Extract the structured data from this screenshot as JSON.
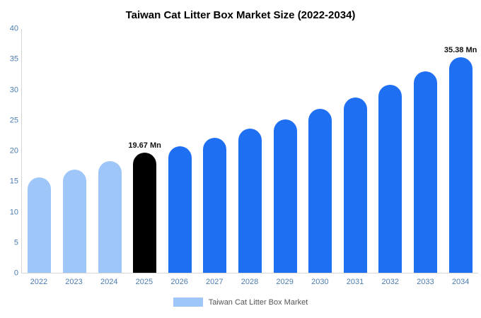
{
  "chart_data": {
    "type": "bar",
    "title": "Taiwan Cat Litter Box Market Size (2022-2034)",
    "categories": [
      "2022",
      "2023",
      "2024",
      "2025",
      "2026",
      "2027",
      "2028",
      "2029",
      "2030",
      "2031",
      "2032",
      "2033",
      "2034"
    ],
    "values": [
      15.7,
      16.9,
      18.3,
      19.67,
      20.8,
      22.1,
      23.6,
      25.2,
      26.9,
      28.8,
      30.8,
      33.0,
      35.38
    ],
    "point_labels": [
      "",
      "",
      "",
      "19.67 Mn",
      "",
      "",
      "",
      "",
      "",
      "",
      "",
      "",
      "35.38 Mn"
    ],
    "bar_colors": [
      "#9ec6f8",
      "#9ec6f8",
      "#9ec6f8",
      "#000000",
      "#1f6ff2",
      "#1f6ff2",
      "#1f6ff2",
      "#1f6ff2",
      "#1f6ff2",
      "#1f6ff2",
      "#1f6ff2",
      "#1f6ff2",
      "#1f6ff2"
    ],
    "xlabel": "",
    "ylabel": "",
    "ylim": [
      0,
      40
    ],
    "yticks": [
      0,
      5,
      10,
      15,
      20,
      25,
      30,
      35,
      40
    ],
    "grid": false,
    "legend_position": "bottom",
    "legend": "Taiwan Cat Litter Box Market",
    "colors": {
      "light_blue": "#9ec6f8",
      "bright_blue": "#1f6ff2",
      "highlight_black": "#000000",
      "axis_line": "#d6d6d6",
      "tick_text": "#4c7caf",
      "legend_text": "#555555"
    }
  }
}
